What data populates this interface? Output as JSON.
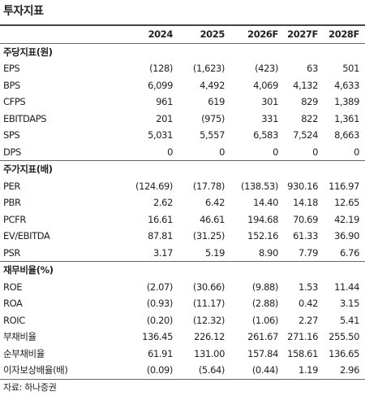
{
  "title": "투자지표",
  "columns": [
    "2024",
    "2025",
    "2026F",
    "2027F",
    "2028F"
  ],
  "sections": [
    {
      "title": "주당지표(원)",
      "rows": [
        {
          "label": "EPS",
          "values": [
            "(128)",
            "(1,623)",
            "(423)",
            "63",
            "501"
          ]
        },
        {
          "label": "BPS",
          "values": [
            "6,099",
            "4,492",
            "4,069",
            "4,132",
            "4,633"
          ]
        },
        {
          "label": "CFPS",
          "values": [
            "961",
            "619",
            "301",
            "829",
            "1,389"
          ]
        },
        {
          "label": "EBITDAPS",
          "values": [
            "201",
            "(975)",
            "331",
            "822",
            "1,361"
          ]
        },
        {
          "label": "SPS",
          "values": [
            "5,031",
            "5,557",
            "6,583",
            "7,524",
            "8,663"
          ]
        },
        {
          "label": "DPS",
          "values": [
            "0",
            "0",
            "0",
            "0",
            "0"
          ]
        }
      ]
    },
    {
      "title": "주가지표(배)",
      "rows": [
        {
          "label": "PER",
          "values": [
            "(124.69)",
            "(17.78)",
            "(138.53)",
            "930.16",
            "116.97"
          ]
        },
        {
          "label": "PBR",
          "values": [
            "2.62",
            "6.42",
            "14.40",
            "14.18",
            "12.65"
          ]
        },
        {
          "label": "PCFR",
          "values": [
            "16.61",
            "46.61",
            "194.68",
            "70.69",
            "42.19"
          ]
        },
        {
          "label": "EV/EBITDA",
          "values": [
            "87.81",
            "(31.25)",
            "152.16",
            "61.33",
            "36.90"
          ]
        },
        {
          "label": "PSR",
          "values": [
            "3.17",
            "5.19",
            "8.90",
            "7.79",
            "6.76"
          ]
        }
      ]
    },
    {
      "title": "재무비율(%)",
      "rows": [
        {
          "label": "ROE",
          "values": [
            "(2.07)",
            "(30.66)",
            "(9.88)",
            "1.53",
            "11.44"
          ]
        },
        {
          "label": "ROA",
          "values": [
            "(0.93)",
            "(11.17)",
            "(2.88)",
            "0.42",
            "3.15"
          ]
        },
        {
          "label": "ROIC",
          "values": [
            "(0.20)",
            "(12.32)",
            "(1.06)",
            "2.27",
            "5.41"
          ]
        },
        {
          "label": "부채비율",
          "values": [
            "136.45",
            "226.12",
            "261.67",
            "271.16",
            "255.50"
          ]
        },
        {
          "label": "순부채비율",
          "values": [
            "61.91",
            "131.00",
            "157.84",
            "158.61",
            "136.65"
          ]
        },
        {
          "label": "이자보상배율(배)",
          "values": [
            "(0.09)",
            "(5.64)",
            "(0.44)",
            "1.19",
            "2.96"
          ]
        }
      ]
    }
  ],
  "source": "자료: 하나증권"
}
